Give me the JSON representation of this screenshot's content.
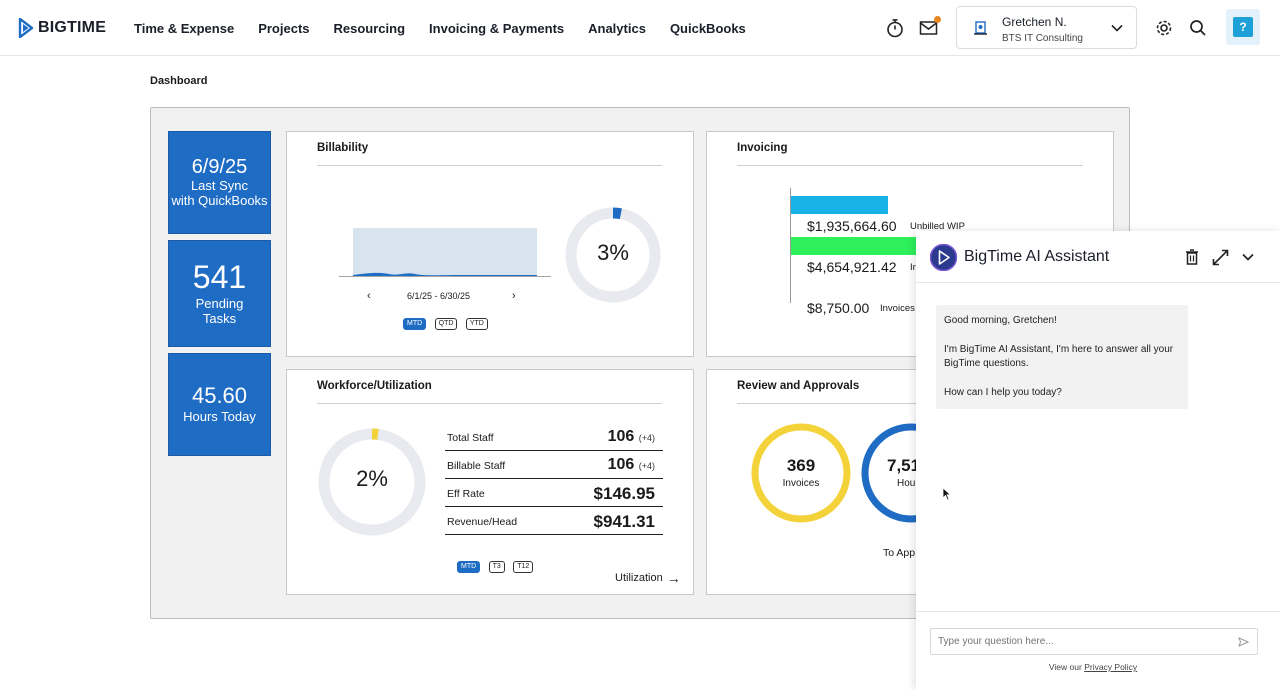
{
  "header": {
    "logo_text": "BIGTIME",
    "nav": [
      "Time & Expense",
      "Projects",
      "Resourcing",
      "Invoicing & Payments",
      "Analytics",
      "QuickBooks"
    ],
    "user_name": "Gretchen N.",
    "user_org": "BTS IT Consulting",
    "help_label": "?"
  },
  "page_title": "Dashboard",
  "tiles": {
    "sync": {
      "value": "6/9/25",
      "line1": "Last Sync",
      "line2": "with QuickBooks"
    },
    "tasks": {
      "value": "541",
      "line1": "Pending",
      "line2": "Tasks"
    },
    "hours": {
      "value": "45.60",
      "line1": "Hours Today"
    }
  },
  "billability": {
    "title": "Billability",
    "date_range": "6/1/25 - 6/30/25",
    "prev": "‹",
    "next": "›",
    "percent_label": "3%",
    "percent": 3,
    "periods": [
      "MTD",
      "QTD",
      "YTD"
    ]
  },
  "invoicing": {
    "title": "Invoicing",
    "rows": [
      {
        "amount": "$1,935,664.60",
        "label": "Unbilled WIP",
        "color": "#18b3e6"
      },
      {
        "amount": "$4,654,921.42",
        "label": "In",
        "color": "#2ef05a"
      },
      {
        "amount": "$8,750.00",
        "label": "Invoices",
        "color": ""
      }
    ]
  },
  "workforce": {
    "title": "Workforce/Utilization",
    "percent_label": "2%",
    "percent": 2,
    "metrics": [
      {
        "name": "Total Staff",
        "value": "106",
        "delta": "(+4)"
      },
      {
        "name": "Billable Staff",
        "value": "106",
        "delta": "(+4)"
      },
      {
        "name": "Eff Rate",
        "value": "$146.95",
        "delta": ""
      },
      {
        "name": "Revenue/Head",
        "value": "$941.31",
        "delta": ""
      }
    ],
    "periods": [
      "MTD",
      "T3",
      "T12"
    ],
    "link_label": "Utilization",
    "link_arrow": "→"
  },
  "review": {
    "title": "Review and Approvals",
    "invoices_value": "369",
    "invoices_label": "Invoices",
    "hours_value": "7,51",
    "hours_label": "Hou",
    "link_label": "To App"
  },
  "assistant": {
    "title": "BigTime AI Assistant",
    "greeting": "Good morning, Gretchen!",
    "intro": "I'm BigTime AI Assistant, I'm here to answer all your BigTime questions.",
    "question": "How can I help you today?",
    "input_placeholder": "Type your question here...",
    "policy_prefix": "View our",
    "policy_link": "Privacy Policy"
  },
  "colors": {
    "brand_blue": "#1f6cc4",
    "ring_gray": "#e8eaef",
    "ring_yellow": "#f4d23a",
    "notif_orange": "#e8871e"
  }
}
